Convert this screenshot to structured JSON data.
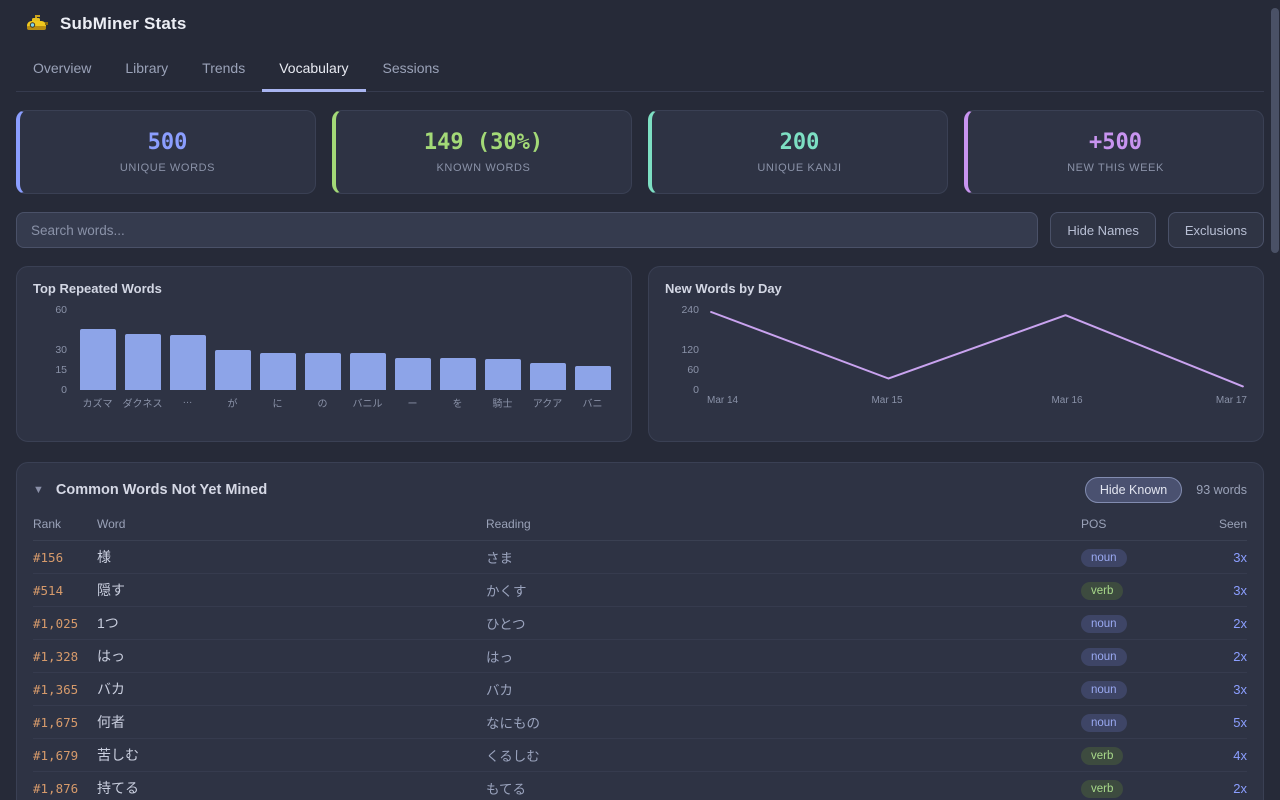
{
  "app": {
    "title": "SubMiner Stats",
    "logo": "submarine-icon"
  },
  "active_tab": "Vocabulary",
  "tabs": [
    {
      "label": "Overview"
    },
    {
      "label": "Library"
    },
    {
      "label": "Trends"
    },
    {
      "label": "Vocabulary"
    },
    {
      "label": "Sessions"
    }
  ],
  "stats": [
    {
      "value": "500",
      "label": "UNIQUE WORDS",
      "color": "#8b9eff"
    },
    {
      "value": "149 (30%)",
      "label": "KNOWN WORDS",
      "color": "#a3d977"
    },
    {
      "value": "200",
      "label": "UNIQUE KANJI",
      "color": "#7ddfc3"
    },
    {
      "value": "+500",
      "label": "NEW THIS WEEK",
      "color": "#c894f0"
    }
  ],
  "search": {
    "placeholder": "Search words...",
    "hide_names_label": "Hide Names",
    "exclusions_label": "Exclusions"
  },
  "chart_data": [
    {
      "type": "bar",
      "title": "Top Repeated Words",
      "categories": [
        "カズマ",
        "ダクネス",
        "…",
        "が",
        "に",
        "の",
        "バニル",
        "ー",
        "を",
        "騎士",
        "アクア",
        "バニ"
      ],
      "values": [
        46,
        42,
        41,
        30,
        28,
        28,
        28,
        24,
        24,
        23,
        20,
        18
      ],
      "yticks": [
        60,
        30,
        15,
        0
      ],
      "ylim": [
        0,
        60
      ],
      "bar_color": "#8da4e8",
      "grid": false,
      "legend": false
    },
    {
      "type": "line",
      "title": "New Words by Day",
      "x": [
        "Mar 14",
        "Mar 15",
        "Mar 16",
        "Mar 17"
      ],
      "values": [
        240,
        30,
        230,
        5
      ],
      "yticks": [
        240,
        120,
        60,
        0
      ],
      "ylim": [
        0,
        240
      ],
      "line_color": "#c9a3ef",
      "grid": false,
      "legend": false
    }
  ],
  "table": {
    "collapse_icon": "▼",
    "title": "Common Words Not Yet Mined",
    "hide_known_label": "Hide Known",
    "count_label": "93 words",
    "columns": [
      "Rank",
      "Word",
      "Reading",
      "POS",
      "Seen"
    ],
    "pos_styles": {
      "noun": {
        "bg": "#3e4566",
        "text": "#9aa9f2"
      },
      "verb": {
        "bg": "#3d4b3f",
        "text": "#a8d98a"
      }
    },
    "rows": [
      {
        "rank": "#156",
        "word": "様",
        "reading": "さま",
        "pos": "noun",
        "seen": "3x"
      },
      {
        "rank": "#514",
        "word": "隠す",
        "reading": "かくす",
        "pos": "verb",
        "seen": "3x"
      },
      {
        "rank": "#1,025",
        "word": "1つ",
        "reading": "ひとつ",
        "pos": "noun",
        "seen": "2x"
      },
      {
        "rank": "#1,328",
        "word": "はっ",
        "reading": "はっ",
        "pos": "noun",
        "seen": "2x"
      },
      {
        "rank": "#1,365",
        "word": "バカ",
        "reading": "バカ",
        "pos": "noun",
        "seen": "3x"
      },
      {
        "rank": "#1,675",
        "word": "何者",
        "reading": "なにもの",
        "pos": "noun",
        "seen": "5x"
      },
      {
        "rank": "#1,679",
        "word": "苦しむ",
        "reading": "くるしむ",
        "pos": "verb",
        "seen": "4x"
      },
      {
        "rank": "#1,876",
        "word": "持てる",
        "reading": "もてる",
        "pos": "verb",
        "seen": "2x"
      }
    ]
  }
}
